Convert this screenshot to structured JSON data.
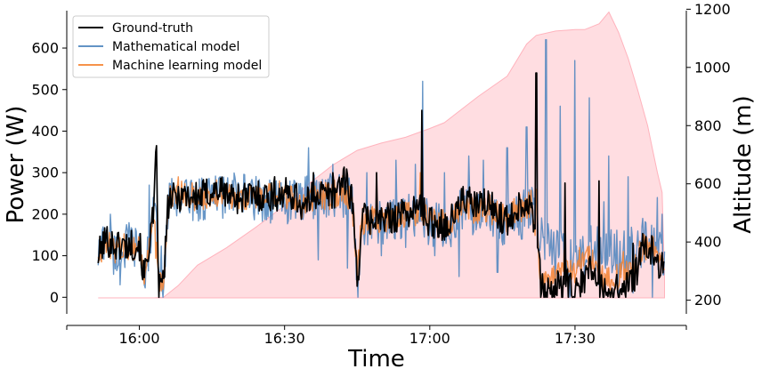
{
  "chart_data": {
    "type": "line",
    "xlabel": "Time",
    "ylabel_left": "Power (W)",
    "ylabel_right": "Altitude (m)",
    "x_ticks": [
      "16:00",
      "16:30",
      "17:00",
      "17:30"
    ],
    "xlim_minutes": [
      -15,
      113
    ],
    "x_data_range_minutes": [
      -8.5,
      108.5
    ],
    "y_left_ticks": [
      0,
      100,
      200,
      300,
      400,
      500,
      600
    ],
    "ylim_left": [
      -40,
      690
    ],
    "y_right_ticks": [
      200,
      400,
      600,
      800,
      1000,
      1200
    ],
    "ylim_right": [
      153,
      1195
    ],
    "legend_position": "upper-left",
    "grid": false,
    "series": [
      {
        "name": "Ground-truth",
        "color": "#000000",
        "axis": "left",
        "anchors": [
          [
            -8.5,
            100
          ],
          [
            -7,
            140
          ],
          [
            -5,
            125
          ],
          [
            -2,
            125
          ],
          [
            0,
            130
          ],
          [
            1,
            45
          ],
          [
            2,
            130
          ],
          [
            3,
            200
          ],
          [
            3.5,
            360
          ],
          [
            4,
            15
          ],
          [
            5,
            40
          ],
          [
            6,
            230
          ],
          [
            9,
            250
          ],
          [
            12,
            240
          ],
          [
            16,
            260
          ],
          [
            20,
            240
          ],
          [
            24,
            245
          ],
          [
            28,
            245
          ],
          [
            32,
            250
          ],
          [
            34,
            210
          ],
          [
            36,
            250
          ],
          [
            40,
            245
          ],
          [
            42,
            290
          ],
          [
            44,
            240
          ],
          [
            45,
            30
          ],
          [
            46,
            190
          ],
          [
            50,
            185
          ],
          [
            54,
            200
          ],
          [
            58,
            215
          ],
          [
            60,
            180
          ],
          [
            64,
            175
          ],
          [
            67,
            240
          ],
          [
            69,
            220
          ],
          [
            72,
            225
          ],
          [
            76,
            180
          ],
          [
            78,
            220
          ],
          [
            81,
            230
          ],
          [
            82,
            150
          ],
          [
            83,
            20
          ],
          [
            85,
            10
          ],
          [
            88,
            40
          ],
          [
            90,
            0
          ],
          [
            93,
            70
          ],
          [
            96,
            10
          ],
          [
            100,
            20
          ],
          [
            103,
            60
          ],
          [
            104,
            120
          ],
          [
            106,
            110
          ],
          [
            108.5,
            65
          ]
        ],
        "spikes": [
          [
            3.5,
            365
          ],
          [
            28,
            290
          ],
          [
            36,
            300
          ],
          [
            40,
            300
          ],
          [
            49,
            300
          ],
          [
            58.3,
            450
          ],
          [
            82,
            540
          ],
          [
            88,
            275
          ],
          [
            95,
            280
          ],
          [
            102,
            130
          ]
        ]
      },
      {
        "name": "Mathematical model",
        "color": "#4c84bd",
        "axis": "left",
        "anchors": [
          [
            -8.5,
            100
          ],
          [
            -7,
            150
          ],
          [
            -5,
            100
          ],
          [
            -2,
            130
          ],
          [
            0,
            120
          ],
          [
            1,
            40
          ],
          [
            3,
            200
          ],
          [
            5,
            30
          ],
          [
            6,
            230
          ],
          [
            9,
            245
          ],
          [
            12,
            235
          ],
          [
            16,
            245
          ],
          [
            20,
            245
          ],
          [
            24,
            240
          ],
          [
            28,
            230
          ],
          [
            32,
            230
          ],
          [
            36,
            240
          ],
          [
            40,
            250
          ],
          [
            44,
            230
          ],
          [
            45,
            20
          ],
          [
            46,
            180
          ],
          [
            50,
            180
          ],
          [
            54,
            190
          ],
          [
            58,
            200
          ],
          [
            60,
            175
          ],
          [
            64,
            170
          ],
          [
            67,
            220
          ],
          [
            69,
            200
          ],
          [
            72,
            210
          ],
          [
            76,
            170
          ],
          [
            78,
            200
          ],
          [
            81,
            220
          ],
          [
            82,
            180
          ],
          [
            83,
            140
          ],
          [
            85,
            130
          ],
          [
            88,
            100
          ],
          [
            90,
            90
          ],
          [
            93,
            120
          ],
          [
            96,
            110
          ],
          [
            100,
            110
          ],
          [
            103,
            120
          ],
          [
            104,
            130
          ],
          [
            106,
            130
          ],
          [
            108.5,
            100
          ]
        ],
        "spikes": [
          [
            -6,
            200
          ],
          [
            -4,
            30
          ],
          [
            2,
            270
          ],
          [
            15,
            270
          ],
          [
            22,
            230
          ],
          [
            30,
            240
          ],
          [
            35,
            360
          ],
          [
            37,
            90
          ],
          [
            40,
            320
          ],
          [
            43,
            70
          ],
          [
            47,
            300
          ],
          [
            50,
            100
          ],
          [
            53,
            330
          ],
          [
            55,
            120
          ],
          [
            57,
            320
          ],
          [
            58.5,
            520
          ],
          [
            61,
            100
          ],
          [
            63,
            300
          ],
          [
            66,
            50
          ],
          [
            68,
            340
          ],
          [
            71,
            330
          ],
          [
            74,
            60
          ],
          [
            76,
            360
          ],
          [
            79,
            140
          ],
          [
            80,
            410
          ],
          [
            82,
            500
          ],
          [
            84,
            620
          ],
          [
            86,
            20
          ],
          [
            87,
            460
          ],
          [
            89,
            0
          ],
          [
            90,
            570
          ],
          [
            92,
            50
          ],
          [
            93,
            480
          ],
          [
            95,
            30
          ],
          [
            96,
            230
          ],
          [
            97,
            340
          ],
          [
            99,
            0
          ],
          [
            101,
            290
          ],
          [
            102,
            10
          ],
          [
            104,
            190
          ],
          [
            106,
            0
          ],
          [
            107,
            240
          ],
          [
            108,
            200
          ]
        ]
      },
      {
        "name": "Machine learning model",
        "color": "#f58231",
        "axis": "left",
        "anchors": [
          [
            -8.5,
            110
          ],
          [
            -7,
            130
          ],
          [
            -5,
            115
          ],
          [
            -2,
            125
          ],
          [
            0,
            125
          ],
          [
            1,
            45
          ],
          [
            2,
            130
          ],
          [
            3,
            190
          ],
          [
            4,
            20
          ],
          [
            5,
            40
          ],
          [
            6,
            240
          ],
          [
            9,
            250
          ],
          [
            12,
            235
          ],
          [
            16,
            250
          ],
          [
            20,
            245
          ],
          [
            24,
            240
          ],
          [
            28,
            240
          ],
          [
            32,
            240
          ],
          [
            34,
            220
          ],
          [
            36,
            245
          ],
          [
            40,
            245
          ],
          [
            42,
            265
          ],
          [
            44,
            230
          ],
          [
            45,
            60
          ],
          [
            46,
            185
          ],
          [
            50,
            185
          ],
          [
            54,
            195
          ],
          [
            58,
            205
          ],
          [
            60,
            180
          ],
          [
            64,
            175
          ],
          [
            67,
            225
          ],
          [
            69,
            210
          ],
          [
            72,
            215
          ],
          [
            76,
            185
          ],
          [
            78,
            210
          ],
          [
            81,
            225
          ],
          [
            82,
            150
          ],
          [
            83,
            25
          ],
          [
            85,
            30
          ],
          [
            88,
            90
          ],
          [
            90,
            50
          ],
          [
            93,
            100
          ],
          [
            96,
            40
          ],
          [
            100,
            50
          ],
          [
            103,
            90
          ],
          [
            104,
            125
          ],
          [
            106,
            120
          ],
          [
            108.5,
            70
          ]
        ],
        "spikes": [
          [
            8,
            290
          ],
          [
            29,
            280
          ],
          [
            58,
            300
          ],
          [
            82,
            260
          ],
          [
            91,
            120
          ],
          [
            100,
            110
          ]
        ]
      }
    ],
    "altitude_fill": {
      "color": "#ffb3bd",
      "axis": "right",
      "points": [
        [
          -8.5,
          208
        ],
        [
          3,
          208
        ],
        [
          5,
          210
        ],
        [
          8,
          250
        ],
        [
          12,
          320
        ],
        [
          18,
          380
        ],
        [
          24,
          450
        ],
        [
          30,
          525
        ],
        [
          35,
          600
        ],
        [
          40,
          665
        ],
        [
          45,
          715
        ],
        [
          50,
          740
        ],
        [
          55,
          760
        ],
        [
          60,
          790
        ],
        [
          63,
          810
        ],
        [
          70,
          900
        ],
        [
          76,
          970
        ],
        [
          80,
          1080
        ],
        [
          82,
          1110
        ],
        [
          86,
          1125
        ],
        [
          90,
          1130
        ],
        [
          92,
          1130
        ],
        [
          95,
          1150
        ],
        [
          97,
          1190
        ],
        [
          99,
          1120
        ],
        [
          101,
          1030
        ],
        [
          103,
          920
        ],
        [
          105,
          800
        ],
        [
          106,
          720
        ],
        [
          107,
          640
        ],
        [
          108,
          570
        ],
        [
          108.5,
          280
        ]
      ]
    }
  }
}
